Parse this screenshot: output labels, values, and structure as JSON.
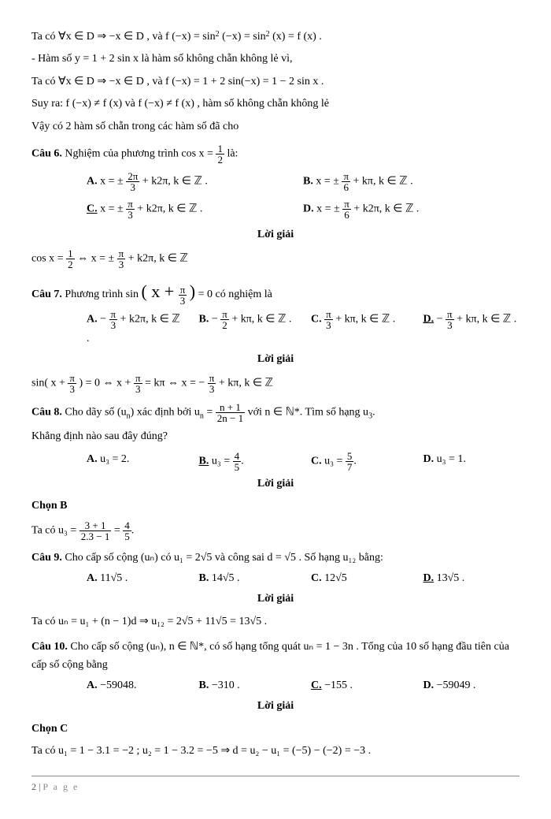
{
  "intro": {
    "l1_pre": "Ta có ∀x ∈ D ⇒ −x ∈ D , và  f (−x) = sin",
    "l1_mid": " (−x) = sin",
    "l1_post": " (x) = f (x) .",
    "l2": "- Hàm số  y = 1 + 2 sin x  là hàm số không chẵn không lẻ vì,",
    "l3": "Ta có ∀x ∈ D ⇒ −x ∈ D , và  f (−x) = 1 + 2 sin(−x) = 1 − 2 sin x .",
    "l4": "Suy ra:  f (−x) ≠ f (x)  và  f (−x) ≠ f (x) , hàm số không chẵn không lẻ",
    "l5": "Vậy có 2 hàm số chẵn trong các hàm số đã cho"
  },
  "q6": {
    "title": "Câu 6.",
    "stem_pre": "Nghiệm của phương trình  cos x = ",
    "stem_post": "  là:",
    "stem_frac_num": "1",
    "stem_frac_den": "2",
    "A": {
      "label": "A.",
      "pre": "x = ± ",
      "num": "2π",
      "den": "3",
      "post": " + k2π, k ∈ ℤ ."
    },
    "B": {
      "label": "B.",
      "pre": "x = ± ",
      "num": "π",
      "den": "6",
      "post": " + kπ, k ∈ ℤ ."
    },
    "C": {
      "label": "C.",
      "pre": "x = ± ",
      "num": "π",
      "den": "3",
      "post": " + k2π, k ∈ ℤ .",
      "correct": true
    },
    "D": {
      "label": "D.",
      "pre": "x = ± ",
      "num": "π",
      "den": "6",
      "post": " + k2π, k ∈ ℤ ."
    },
    "loigiai": "Lời giải",
    "sol": {
      "pre": "cos x = ",
      "f1n": "1",
      "f1d": "2",
      "mid": " ⇔ x = ± ",
      "f2n": "π",
      "f2d": "3",
      "post": " + k2π, k ∈ ℤ"
    }
  },
  "q7": {
    "title": "Câu 7.",
    "stem_pre": "Phương trình  sin",
    "stem_arg_pre": "( x + ",
    "stem_num": "π",
    "stem_den": "3",
    "stem_arg_post": " )",
    "stem_post": " = 0  có nghiệm là",
    "A": {
      "label": "A.",
      "pre": "− ",
      "num": "π",
      "den": "3",
      "post": " + k2π,  k ∈ ℤ ."
    },
    "B": {
      "label": "B.",
      "pre": "− ",
      "num": "π",
      "den": "2",
      "post": " + kπ,  k ∈ ℤ ."
    },
    "C": {
      "label": "C.",
      "pre": "",
      "num": "π",
      "den": "3",
      "post": " + kπ,  k ∈ ℤ ."
    },
    "D": {
      "label": "D.",
      "pre": "− ",
      "num": "π",
      "den": "3",
      "post": " + kπ,  k ∈ ℤ .",
      "correct": true
    },
    "loigiai": "Lời giải",
    "sol": {
      "pre": "sin( x + ",
      "a_n": "π",
      "a_d": "3",
      "mid1": " ) = 0 ⇔ x + ",
      "b_n": "π",
      "b_d": "3",
      "mid2": " = kπ ⇔ x = − ",
      "c_n": "π",
      "c_d": "3",
      "post": " + kπ, k ∈ ℤ"
    }
  },
  "q8": {
    "title": "Câu 8.",
    "stem_pre": "Cho dãy số (u",
    "stem_sub": "n",
    "stem_mid": ")  xác định bởi  u",
    "stem_sub2": "n",
    "stem_eq": " = ",
    "frac_num": "n + 1",
    "frac_den": "2n − 1",
    "stem_post": "  với  n ∈ ℕ*.  Tìm số hạng  u",
    "stem_sub3": "3",
    "stem_end": ".",
    "line2": "Khẳng định nào sau đây đúng?",
    "A": {
      "label": "A.",
      "txt": "u₃ = 2."
    },
    "B": {
      "label": "B.",
      "pre": "u₃ = ",
      "num": "4",
      "den": "5",
      "post": ".",
      "correct": true
    },
    "C": {
      "label": "C.",
      "pre": "u₃ = ",
      "num": "5",
      "den": "7",
      "post": "."
    },
    "D": {
      "label": "D.",
      "txt": "u₃ = 1."
    },
    "loigiai": "Lời giải",
    "chon": "Chọn B",
    "sol_pre": "Ta có  u₃ = ",
    "sol_n1": "3 + 1",
    "sol_d1": "2.3 − 1",
    "sol_mid": " = ",
    "sol_n2": "4",
    "sol_d2": "5",
    "sol_post": "."
  },
  "q9": {
    "title": "Câu 9.",
    "stem": "Cho cấp số cộng (uₙ) có  u₁ = 2√5  và công sai  d = √5 . Số hạng  u₁₂  bằng:",
    "A": {
      "label": "A.",
      "txt": "11√5 ."
    },
    "B": {
      "label": "B.",
      "txt": "14√5 ."
    },
    "C": {
      "label": "C.",
      "txt": "12√5"
    },
    "D": {
      "label": "D.",
      "txt": "13√5 .",
      "correct": true
    },
    "loigiai": "Lời giải",
    "sol": "Ta có  uₙ = u₁ + (n − 1)d ⇒ u₁₂ = 2√5 + 11√5 = 13√5 ."
  },
  "q10": {
    "title": "Câu 10.",
    "stem": "Cho cấp số cộng (uₙ),  n ∈ ℕ*, có số hạng tổng quát  uₙ = 1 − 3n . Tổng của 10 số hạng đầu tiên của cấp số cộng bằng",
    "A": {
      "label": "A.",
      "txt": "−59048."
    },
    "B": {
      "label": "B.",
      "txt": "−310 ."
    },
    "C": {
      "label": "C.",
      "txt": "−155 .",
      "correct": true
    },
    "D": {
      "label": "D.",
      "txt": "−59049 ."
    },
    "loigiai": "Lời giải",
    "chon": "Chọn C",
    "sol": "Ta có  u₁ = 1 − 3.1 = −2 ;  u₂ = 1 − 3.2 = −5 ⇒ d = u₂ − u₁ = (−5) − (−2) = −3 ."
  },
  "footer": {
    "page": "2",
    "sep": " | ",
    "label": "P a g e"
  }
}
